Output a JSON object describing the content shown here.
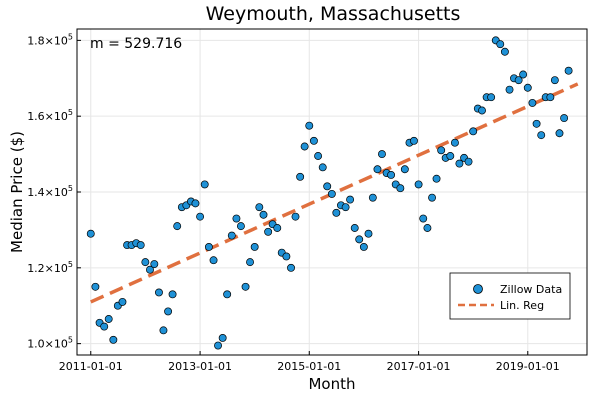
{
  "chart_data": {
    "type": "scatter",
    "title": "Weymouth, Massachusetts",
    "xlabel": "Month",
    "ylabel": "Median Price ($)",
    "annotation": "m = 529.716",
    "x_ticks": [
      "2011-01-01",
      "2013-01-01",
      "2015-01-01",
      "2017-01-01",
      "2019-01-01"
    ],
    "y_ticks": [
      {
        "value": 100000,
        "mantissa": "1.0×10",
        "exp": "5"
      },
      {
        "value": 120000,
        "mantissa": "1.2×10",
        "exp": "5"
      },
      {
        "value": 140000,
        "mantissa": "1.4×10",
        "exp": "5"
      },
      {
        "value": 160000,
        "mantissa": "1.6×10",
        "exp": "5"
      },
      {
        "value": 180000,
        "mantissa": "1.8×10",
        "exp": "5"
      }
    ],
    "xlim": [
      "2010-10-01",
      "2020-02-01"
    ],
    "ylim": [
      97000,
      183000
    ],
    "grid": true,
    "legend_position": "bottom-right",
    "colors": {
      "scatter": "#1f91d6",
      "line": "#e0703f"
    },
    "series": [
      {
        "name": "Zillow Data",
        "kind": "scatter",
        "x": [
          "2011-01-01",
          "2011-02-01",
          "2011-03-01",
          "2011-04-01",
          "2011-05-01",
          "2011-06-01",
          "2011-07-01",
          "2011-08-01",
          "2011-09-01",
          "2011-10-01",
          "2011-11-01",
          "2011-12-01",
          "2012-01-01",
          "2012-02-01",
          "2012-03-01",
          "2012-04-01",
          "2012-05-01",
          "2012-06-01",
          "2012-07-01",
          "2012-08-01",
          "2012-09-01",
          "2012-10-01",
          "2012-11-01",
          "2012-12-01",
          "2013-01-01",
          "2013-02-01",
          "2013-03-01",
          "2013-04-01",
          "2013-05-01",
          "2013-06-01",
          "2013-07-01",
          "2013-08-01",
          "2013-09-01",
          "2013-10-01",
          "2013-11-01",
          "2013-12-01",
          "2014-01-01",
          "2014-02-01",
          "2014-03-01",
          "2014-04-01",
          "2014-05-01",
          "2014-06-01",
          "2014-07-01",
          "2014-08-01",
          "2014-09-01",
          "2014-10-01",
          "2014-11-01",
          "2014-12-01",
          "2015-01-01",
          "2015-02-01",
          "2015-03-01",
          "2015-04-01",
          "2015-05-01",
          "2015-06-01",
          "2015-07-01",
          "2015-08-01",
          "2015-09-01",
          "2015-10-01",
          "2015-11-01",
          "2015-12-01",
          "2016-01-01",
          "2016-02-01",
          "2016-03-01",
          "2016-04-01",
          "2016-05-01",
          "2016-06-01",
          "2016-07-01",
          "2016-08-01",
          "2016-09-01",
          "2016-10-01",
          "2016-11-01",
          "2016-12-01",
          "2017-01-01",
          "2017-02-01",
          "2017-03-01",
          "2017-04-01",
          "2017-05-01",
          "2017-06-01",
          "2017-07-01",
          "2017-08-01",
          "2017-09-01",
          "2017-10-01",
          "2017-11-01",
          "2017-12-01",
          "2018-01-01",
          "2018-02-01",
          "2018-03-01",
          "2018-04-01",
          "2018-05-01",
          "2018-06-01",
          "2018-07-01",
          "2018-08-01",
          "2018-09-01",
          "2018-10-01",
          "2018-11-01",
          "2018-12-01",
          "2019-01-01",
          "2019-02-01",
          "2019-03-01",
          "2019-04-01",
          "2019-05-01",
          "2019-06-01",
          "2019-07-01",
          "2019-08-01",
          "2019-09-01",
          "2019-10-01"
        ],
        "y": [
          129000,
          115000,
          105500,
          104500,
          106500,
          101000,
          110000,
          111000,
          126000,
          126000,
          126500,
          126000,
          121500,
          119500,
          121000,
          113500,
          103500,
          108500,
          113000,
          131000,
          136000,
          136500,
          137500,
          137000,
          133500,
          142000,
          125500,
          122000,
          99500,
          101500,
          113000,
          128500,
          133000,
          131000,
          115000,
          121500,
          125500,
          136000,
          134000,
          129500,
          131500,
          130500,
          124000,
          123000,
          120000,
          133500,
          144000,
          152000,
          157500,
          153500,
          149500,
          146500,
          141500,
          139500,
          134500,
          136500,
          136000,
          138000,
          130500,
          127500,
          125500,
          129000,
          138500,
          146000,
          150000,
          145000,
          144500,
          142000,
          141000,
          146000,
          153000,
          153500,
          142000,
          133000,
          130500,
          138500,
          143500,
          151000,
          149000,
          149500,
          153000,
          147500,
          149000,
          148000,
          156000,
          162000,
          161500,
          165000,
          165000,
          180000,
          179000,
          177000,
          167000,
          170000,
          169500,
          171000,
          167500,
          163500,
          158000,
          155000,
          165000,
          165000,
          169500,
          155500,
          159500,
          172000
        ]
      },
      {
        "name": "Lin. Reg",
        "kind": "line",
        "x": [
          "2011-01-01",
          "2019-12-01"
        ],
        "y": [
          111000,
          168500
        ]
      }
    ]
  }
}
